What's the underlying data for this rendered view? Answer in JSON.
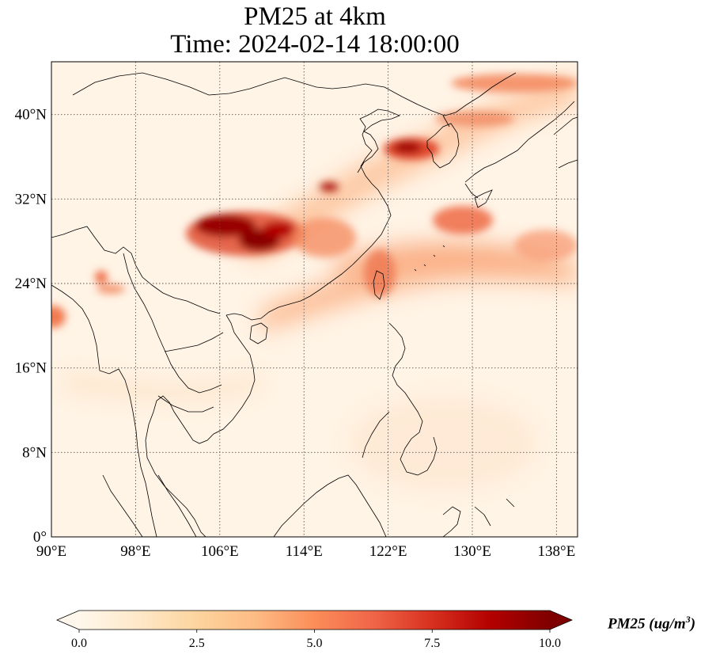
{
  "title": {
    "line1": "PM25 at 4km",
    "line2": "Time: 2024-02-14 18:00:00"
  },
  "map": {
    "projection": "PlateCarree",
    "extent": {
      "lon_min": 90,
      "lon_max": 140,
      "lat_min": 0,
      "lat_max": 45
    },
    "gridlines": "dotted",
    "lon_ticks": [
      {
        "value": 90,
        "label": "90°E"
      },
      {
        "value": 98,
        "label": "98°E"
      },
      {
        "value": 106,
        "label": "106°E"
      },
      {
        "value": 114,
        "label": "114°E"
      },
      {
        "value": 122,
        "label": "122°E"
      },
      {
        "value": 130,
        "label": "130°E"
      },
      {
        "value": 138,
        "label": "138°E"
      }
    ],
    "lat_ticks": [
      {
        "value": 0,
        "label": "0°"
      },
      {
        "value": 8,
        "label": "8°N"
      },
      {
        "value": 16,
        "label": "16°N"
      },
      {
        "value": 24,
        "label": "24°N"
      },
      {
        "value": 32,
        "label": "32°N"
      },
      {
        "value": 40,
        "label": "40°N"
      }
    ]
  },
  "colorbar": {
    "colormap": "OrRd",
    "min": 0,
    "max": 10,
    "extend": "both",
    "ticks": [
      {
        "value": 0,
        "label": "0.0"
      },
      {
        "value": 2.5,
        "label": "2.5"
      },
      {
        "value": 5,
        "label": "5.0"
      },
      {
        "value": 7.5,
        "label": "7.5"
      },
      {
        "value": 10,
        "label": "10.0"
      }
    ],
    "label_main": "PM25 (ug/m",
    "label_sup": "3",
    "label_close": ")",
    "colors": [
      "#fff7ec",
      "#fee8c8",
      "#fdd49e",
      "#fdbb84",
      "#fc8d59",
      "#ef6548",
      "#d7301f",
      "#b30000",
      "#7f0000"
    ]
  },
  "concentration_features": [
    {
      "name": "sichuan-basin",
      "lon": 109.5,
      "lat": 28.5,
      "value": 10
    },
    {
      "name": "sichuan-west",
      "lon": 106.5,
      "lat": 29.5,
      "value": 9.5
    },
    {
      "name": "yangtze-plume",
      "lon": 114,
      "lat": 29.5,
      "value": 6.5
    },
    {
      "name": "korea-yellow-sea",
      "lon": 124.5,
      "lat": 36.5,
      "value": 9
    },
    {
      "name": "jiangsu",
      "lon": 119,
      "lat": 33,
      "value": 8
    },
    {
      "name": "northeast-plume",
      "lon": 133,
      "lat": 40.5,
      "value": 6
    },
    {
      "name": "kyushu",
      "lon": 129,
      "lat": 30,
      "value": 7
    },
    {
      "name": "pacific-outflow",
      "lon": 130,
      "lat": 27,
      "value": 5
    },
    {
      "name": "taiwan-strait",
      "lon": 121,
      "lat": 25.5,
      "value": 6
    },
    {
      "name": "myanmar",
      "lon": 95,
      "lat": 24,
      "value": 5
    },
    {
      "name": "bay-of-bengal",
      "lon": 90.5,
      "lat": 21,
      "value": 6
    },
    {
      "name": "south-china-coast",
      "lon": 114,
      "lat": 21.5,
      "value": 3
    },
    {
      "name": "thailand",
      "lon": 100,
      "lat": 14.5,
      "value": 2
    }
  ]
}
